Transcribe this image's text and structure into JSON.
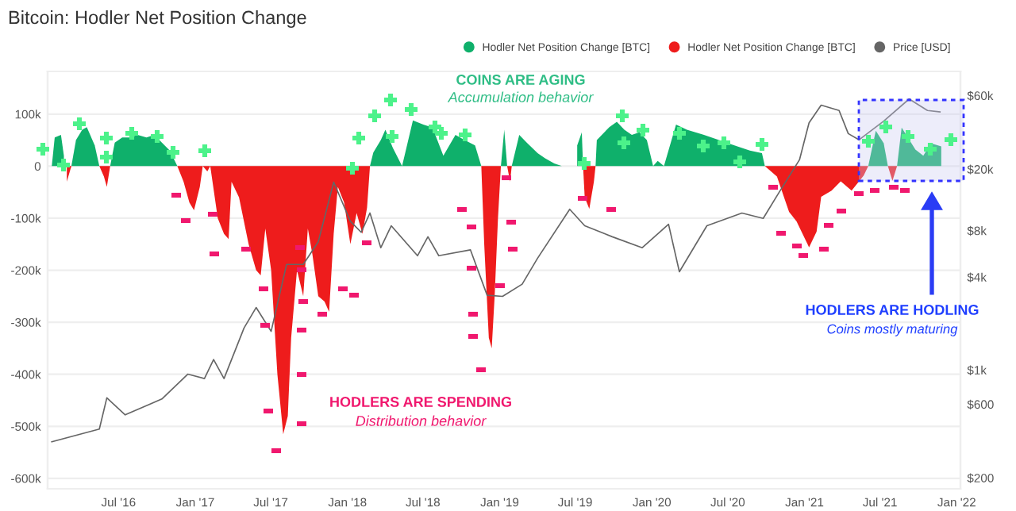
{
  "chart_data": {
    "type": "area",
    "title": "Bitcoin: Hodler Net Position Change",
    "x": [
      "2016-01-23",
      "2016-01-30",
      "2016-02-14",
      "2016-02-21",
      "2016-02-28",
      "2016-03-10",
      "2016-03-21",
      "2016-04-05",
      "2016-04-16",
      "2016-05-05",
      "2016-05-16",
      "2016-05-27",
      "2016-06-03",
      "2016-06-11",
      "2016-06-22",
      "2016-07-10",
      "2016-07-28",
      "2016-08-16",
      "2016-09-06",
      "2016-09-25",
      "2016-10-13",
      "2016-11-01",
      "2016-11-19",
      "2016-12-04",
      "2016-12-18",
      "2016-12-29",
      "2017-01-12",
      "2017-01-19",
      "2017-01-30",
      "2017-02-06",
      "2017-02-24",
      "2017-03-11",
      "2017-03-22",
      "2017-03-29",
      "2017-04-16",
      "2017-05-09",
      "2017-05-27",
      "2017-06-07",
      "2017-06-18",
      "2017-07-02",
      "2017-07-17",
      "2017-07-31",
      "2017-08-11",
      "2017-08-19",
      "2017-09-02",
      "2017-09-17",
      "2017-09-28",
      "2017-10-09",
      "2017-10-23",
      "2017-11-07",
      "2017-11-18",
      "2017-11-29",
      "2017-12-09",
      "2017-12-24",
      "2018-01-08",
      "2018-01-23",
      "2018-02-06",
      "2018-02-17",
      "2018-02-24",
      "2018-03-04",
      "2018-03-22",
      "2018-04-02",
      "2018-04-20",
      "2018-05-12",
      "2018-06-07",
      "2018-07-02",
      "2018-07-24",
      "2018-08-19",
      "2018-09-17",
      "2018-10-09",
      "2018-11-03",
      "2018-11-18",
      "2018-11-25",
      "2018-12-06",
      "2018-12-13",
      "2018-12-20",
      "2018-12-28",
      "2019-01-04",
      "2019-01-12",
      "2019-01-19",
      "2019-01-26",
      "2019-01-30",
      "2019-02-17",
      "2019-03-07",
      "2019-04-02",
      "2019-04-20",
      "2019-05-12",
      "2019-05-30",
      "2019-06-10",
      "2019-06-25",
      "2019-07-06",
      "2019-07-17",
      "2019-07-20",
      "2019-07-24",
      "2019-08-04",
      "2019-08-15",
      "2019-08-19",
      "2019-08-22",
      "2019-09-21",
      "2019-10-09",
      "2019-10-27",
      "2019-11-14",
      "2019-12-02",
      "2019-12-20",
      "2020-01-04",
      "2020-01-15",
      "2020-01-30",
      "2020-02-28",
      "2020-03-25",
      "2020-05-05",
      "2020-06-10",
      "2020-07-17",
      "2020-08-23",
      "2020-09-21",
      "2020-09-28",
      "2020-10-27",
      "2020-11-25",
      "2020-12-13",
      "2021-01-12",
      "2021-01-30",
      "2021-02-10",
      "2021-03-07",
      "2021-03-29",
      "2021-04-24",
      "2021-05-23",
      "2021-06-03",
      "2021-06-21",
      "2021-07-10",
      "2021-07-20",
      "2021-07-31",
      "2021-08-11",
      "2021-08-22",
      "2021-09-24",
      "2021-10-13",
      "2021-10-31",
      "2021-11-25"
    ],
    "series": [
      {
        "name": "Hodler Net Position Change [BTC]",
        "color": "#0fb06b",
        "values": [
          0,
          55000,
          60000,
          20000,
          null,
          0,
          50000,
          70000,
          75000,
          40000,
          0,
          null,
          null,
          0,
          45000,
          55000,
          55000,
          60000,
          55000,
          60000,
          45000,
          30000,
          0,
          null,
          null,
          null,
          null,
          null,
          null,
          null,
          null,
          null,
          null,
          null,
          null,
          null,
          null,
          null,
          null,
          null,
          null,
          null,
          null,
          null,
          null,
          null,
          null,
          null,
          null,
          null,
          null,
          null,
          null,
          null,
          null,
          null,
          null,
          null,
          0,
          26000,
          50000,
          70000,
          35000,
          0,
          88000,
          80000,
          74000,
          20000,
          60000,
          50000,
          40000,
          0,
          null,
          null,
          null,
          null,
          null,
          0,
          70000,
          0,
          null,
          0,
          60000,
          45000,
          25000,
          15000,
          5000,
          0,
          null,
          null,
          40000,
          65000,
          0,
          null,
          null,
          null,
          0,
          50000,
          75000,
          85000,
          70000,
          60000,
          65000,
          50000,
          0,
          10000,
          0,
          80000,
          70000,
          60000,
          50000,
          40000,
          30000,
          25000,
          0,
          null,
          null,
          null,
          null,
          null,
          null,
          null,
          null,
          null,
          null,
          0,
          68000,
          44000,
          0,
          null,
          0,
          74000,
          32000,
          20000,
          44000,
          38000
        ]
      },
      {
        "name": "Hodler Net Position Change [BTC]",
        "color": "#ee1c1c",
        "values": [
          null,
          null,
          null,
          null,
          -30000,
          0,
          null,
          null,
          null,
          null,
          0,
          -20000,
          -40000,
          0,
          null,
          null,
          null,
          null,
          null,
          null,
          null,
          null,
          0,
          -30000,
          -70000,
          -85000,
          -40000,
          0,
          -10000,
          0,
          -100000,
          -130000,
          -140000,
          -30000,
          -60000,
          -150000,
          -200000,
          -210000,
          -120000,
          -200000,
          -400000,
          -515000,
          -480000,
          -330000,
          -200000,
          -250000,
          -120000,
          -170000,
          -250000,
          -260000,
          -280000,
          -130000,
          -40000,
          -70000,
          -150000,
          -90000,
          -130000,
          -80000,
          0,
          null,
          null,
          null,
          null,
          null,
          null,
          null,
          null,
          null,
          null,
          null,
          null,
          0,
          -150000,
          -330000,
          -350000,
          -250000,
          -100000,
          0,
          null,
          0,
          -30000,
          0,
          null,
          null,
          null,
          null,
          null,
          null,
          null,
          null,
          null,
          null,
          0,
          -60000,
          -82000,
          -30000,
          0,
          null,
          null,
          null,
          null,
          null,
          null,
          null,
          null,
          null,
          null,
          null,
          null,
          null,
          null,
          null,
          null,
          null,
          0,
          -20000,
          -88000,
          -106000,
          -156000,
          -126000,
          -59000,
          -47000,
          -29000,
          -47000,
          -18000,
          0,
          null,
          null,
          0,
          -28000,
          0,
          null,
          null,
          null,
          null,
          null
        ]
      },
      {
        "name": "Price [USD]",
        "type": "line",
        "axis": "y2",
        "color": "#666666",
        "x": [
          "2016-01-23",
          "2016-05-16",
          "2016-06-03",
          "2016-07-17",
          "2016-10-13",
          "2016-12-14",
          "2017-01-23",
          "2017-02-14",
          "2017-03-11",
          "2017-04-28",
          "2017-05-27",
          "2017-07-02",
          "2017-08-08",
          "2017-09-17",
          "2017-10-23",
          "2017-11-29",
          "2018-01-08",
          "2018-02-03",
          "2018-02-24",
          "2018-03-22",
          "2018-04-16",
          "2018-06-18",
          "2018-07-13",
          "2018-08-08",
          "2018-10-23",
          "2018-12-02",
          "2019-01-08",
          "2019-02-24",
          "2019-04-02",
          "2019-06-18",
          "2019-07-24",
          "2019-09-28",
          "2019-12-09",
          "2020-02-10",
          "2020-03-07",
          "2020-05-12",
          "2020-08-04",
          "2020-09-24",
          "2020-10-31",
          "2020-12-20",
          "2021-01-12",
          "2021-02-10",
          "2021-03-25",
          "2021-04-16",
          "2021-05-12",
          "2021-07-10",
          "2021-09-09",
          "2021-10-23",
          "2021-11-22"
        ],
        "values": [
          343,
          414,
          660,
          512,
          649,
          940,
          880,
          1170,
          880,
          1870,
          2540,
          1780,
          4830,
          4830,
          6770,
          16500,
          9200,
          7800,
          10400,
          6200,
          8600,
          5500,
          7300,
          5500,
          6000,
          3050,
          3000,
          3600,
          5300,
          11000,
          8600,
          7300,
          6200,
          8800,
          4330,
          8600,
          10400,
          9600,
          14000,
          23000,
          40000,
          52000,
          48000,
          34000,
          31000,
          41000,
          57000,
          48000,
          47000
        ]
      }
    ],
    "xlim": [
      "2016-01-13",
      "2022-01-10"
    ],
    "xticks": [
      {
        "value": "2016-07-01",
        "label": "Jul '16"
      },
      {
        "value": "2017-01-01",
        "label": "Jan '17"
      },
      {
        "value": "2017-07-01",
        "label": "Jul '17"
      },
      {
        "value": "2018-01-01",
        "label": "Jan '18"
      },
      {
        "value": "2018-07-01",
        "label": "Jul '18"
      },
      {
        "value": "2019-01-01",
        "label": "Jan '19"
      },
      {
        "value": "2019-07-01",
        "label": "Jul '19"
      },
      {
        "value": "2020-01-01",
        "label": "Jan '20"
      },
      {
        "value": "2020-07-01",
        "label": "Jul '20"
      },
      {
        "value": "2021-01-01",
        "label": "Jan '21"
      },
      {
        "value": "2021-07-01",
        "label": "Jul '21"
      },
      {
        "value": "2022-01-01",
        "label": "Jan '22"
      }
    ],
    "ylim": [
      -620000,
      182000
    ],
    "yticks": [
      {
        "value": 100000,
        "label": "100k"
      },
      0,
      {
        "value": -100000,
        "label": "-100k"
      },
      {
        "value": -200000,
        "label": "-200k"
      },
      {
        "value": -300000,
        "label": "-300k"
      },
      {
        "value": -400000,
        "label": "-400k"
      },
      {
        "value": -500000,
        "label": "-500k"
      },
      {
        "value": -600000,
        "label": "-600k"
      }
    ],
    "log": "y2",
    "y2lim": [
      170,
      86000
    ],
    "y2ticks": [
      {
        "value": 60000,
        "label": "$60k"
      },
      {
        "value": 20000,
        "label": "$20k"
      },
      {
        "value": 8000,
        "label": "$8k"
      },
      {
        "value": 4000,
        "label": "$4k"
      },
      {
        "value": 1000,
        "label": "$1k"
      },
      {
        "value": 600,
        "label": "$600"
      },
      {
        "value": 200,
        "label": "$200"
      }
    ],
    "grid": "y",
    "legend": "top right",
    "annotations": [
      "COINS ARE AGING",
      "Accumulation behavior",
      "HODLERS ARE SPENDING",
      "Distribution behavior",
      "HODLERS ARE HODLING",
      "Coins mostly maturing"
    ]
  }
}
